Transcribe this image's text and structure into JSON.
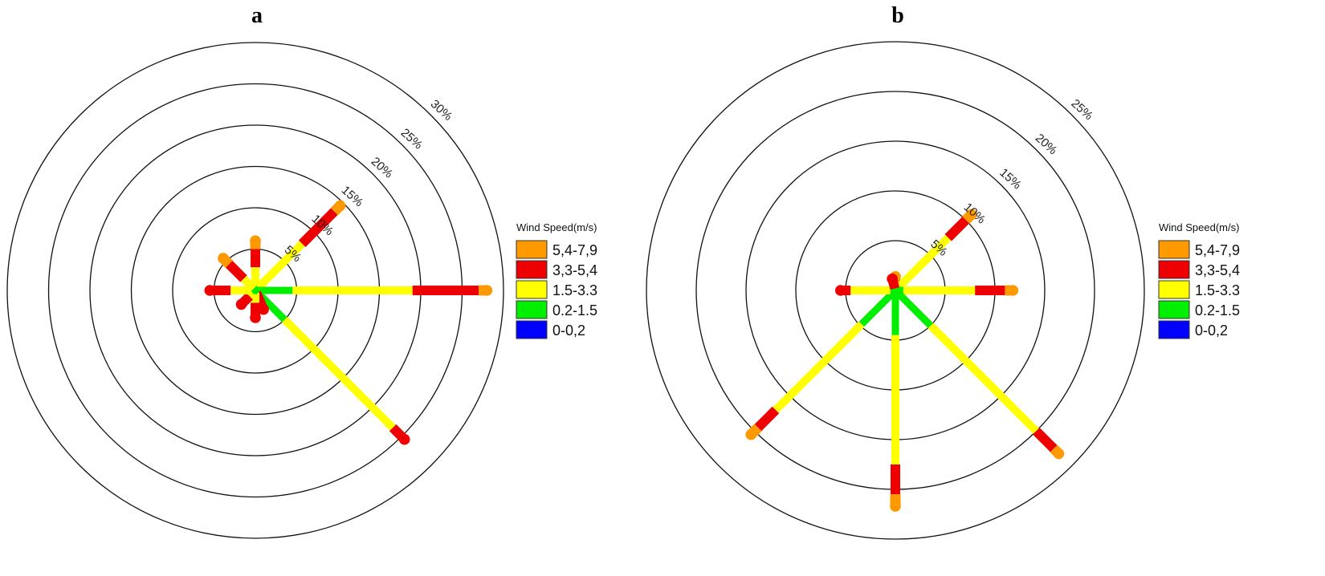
{
  "chart_data": [
    {
      "type": "windrose",
      "title": "a",
      "rings": [
        5,
        10,
        15,
        20,
        25,
        30
      ],
      "ring_labels": [
        "5%",
        "10%",
        "15%",
        "20%",
        "25%",
        "30%"
      ],
      "legend_title": "Wind Speed(m/s)",
      "bins": [
        "0-0,2",
        "0.2-1.5",
        "1.5-3.3",
        "3,3-5,4",
        "5,4-7,9"
      ],
      "spokes": [
        {
          "direction": 0,
          "cumulative": [
            0,
            0.3,
            2.8,
            5.0,
            6.0
          ]
        },
        {
          "direction": 45,
          "cumulative": [
            0,
            0.5,
            8.0,
            13.5,
            14.5
          ]
        },
        {
          "direction": 90,
          "cumulative": [
            0,
            4.5,
            19.0,
            27.0,
            28.0
          ]
        },
        {
          "direction": 135,
          "cumulative": [
            0,
            5.0,
            23.5,
            25.5,
            25.5
          ]
        },
        {
          "direction": 157,
          "cumulative": [
            0,
            0.3,
            0.3,
            2.5,
            2.5
          ]
        },
        {
          "direction": 180,
          "cumulative": [
            0,
            0.3,
            1.5,
            3.3,
            3.3
          ]
        },
        {
          "direction": 225,
          "cumulative": [
            0,
            0.3,
            1.0,
            2.4,
            2.4
          ]
        },
        {
          "direction": 270,
          "cumulative": [
            0,
            0.3,
            3.0,
            5.5,
            5.5
          ]
        },
        {
          "direction": 315,
          "cumulative": [
            0,
            0.3,
            2.0,
            4.5,
            5.5
          ]
        }
      ]
    },
    {
      "type": "windrose",
      "title": "b",
      "rings": [
        5,
        10,
        15,
        20,
        25
      ],
      "ring_labels": [
        "5%",
        "10%",
        "15%",
        "20%",
        "25%"
      ],
      "legend_title": "Wind Speed(m/s)",
      "bins": [
        "0-0,2",
        "0.2-1.5",
        "1.5-3.3",
        "3,3-5,4",
        "5,4-7,9"
      ],
      "spokes": [
        {
          "direction": 0,
          "cumulative": [
            0,
            0.2,
            0.5,
            1.2,
            1.4
          ]
        },
        {
          "direction": 45,
          "cumulative": [
            0,
            0.5,
            7.5,
            10.0,
            10.8
          ]
        },
        {
          "direction": 90,
          "cumulative": [
            0,
            0.8,
            8.0,
            11.0,
            11.8
          ]
        },
        {
          "direction": 135,
          "cumulative": [
            0,
            5.0,
            20.0,
            22.5,
            23.2
          ]
        },
        {
          "direction": 180,
          "cumulative": [
            0,
            4.5,
            17.5,
            20.5,
            21.7
          ]
        },
        {
          "direction": 225,
          "cumulative": [
            0,
            4.8,
            17.0,
            19.5,
            20.5
          ]
        },
        {
          "direction": 270,
          "cumulative": [
            0,
            0.5,
            4.5,
            5.5,
            5.5
          ]
        },
        {
          "direction": 345,
          "cumulative": [
            0,
            0.2,
            0.2,
            1.2,
            1.2
          ]
        }
      ]
    }
  ],
  "colors": {
    "0-0,2": "#0000ff",
    "0.2-1.5": "#00ee00",
    "1.5-3.3": "#ffff00",
    "3,3-5,4": "#ee0000",
    "5,4-7,9": "#ff9900"
  }
}
